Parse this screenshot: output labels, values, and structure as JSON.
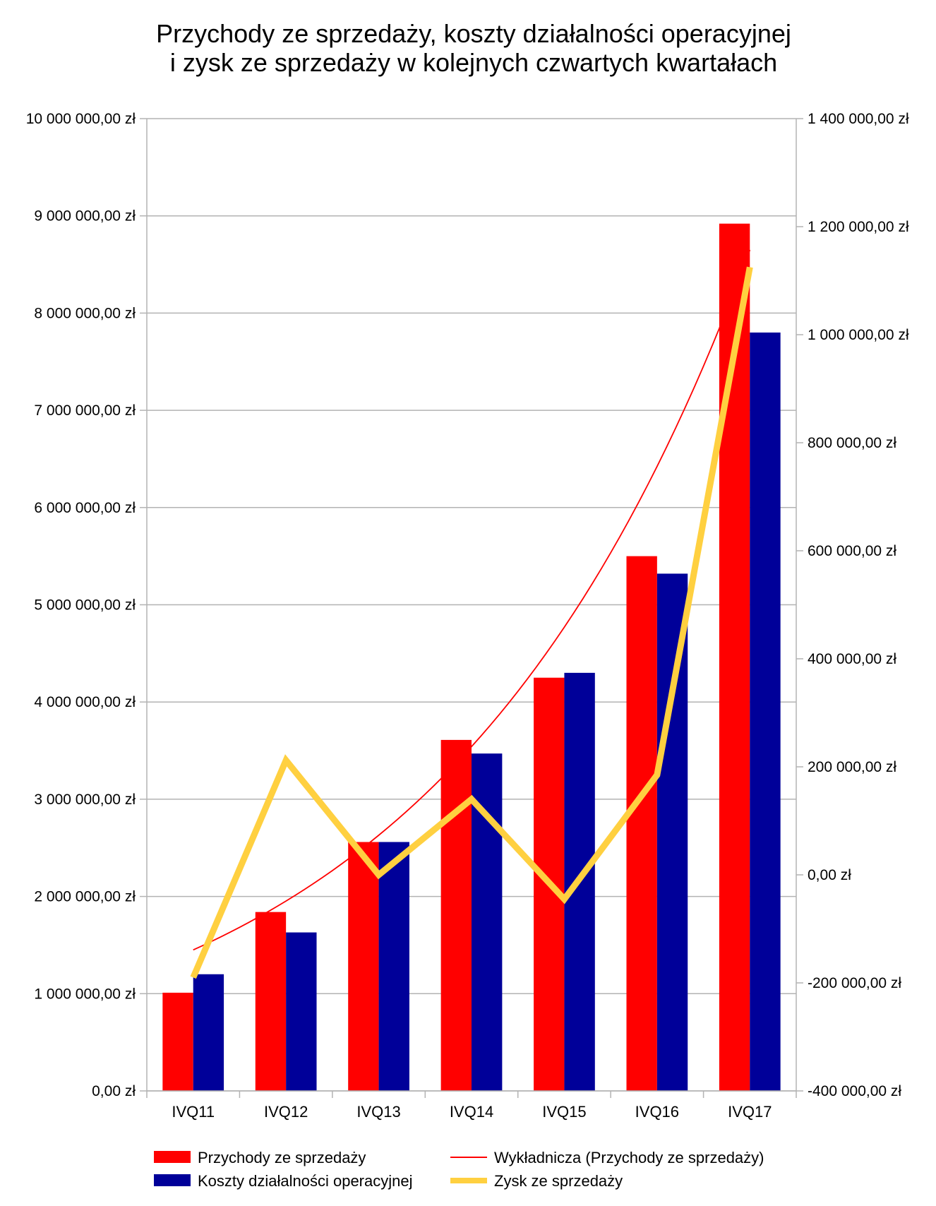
{
  "chart_data": {
    "type": "bar",
    "title": [
      "Przychody ze sprzedaży, koszty działalności operacyjnej",
      "i zysk ze sprzedaży w kolejnych czwartych kwartałach"
    ],
    "categories": [
      "IVQ11",
      "IVQ12",
      "IVQ13",
      "IVQ14",
      "IVQ15",
      "IVQ16",
      "IVQ17"
    ],
    "series": [
      {
        "name": "Przychody ze sprzedaży",
        "axis": "left",
        "kind": "bar",
        "color": "#ff0000",
        "values": [
          1010000,
          1840000,
          2560000,
          3610000,
          4250000,
          5500000,
          8920000
        ]
      },
      {
        "name": "Koszty działalności operacyjnej",
        "axis": "left",
        "kind": "bar",
        "color": "#000099",
        "values": [
          1200000,
          1630000,
          2560000,
          3470000,
          4300000,
          5320000,
          7800000
        ]
      },
      {
        "name": "Zysk ze sprzedaży",
        "axis": "right",
        "kind": "line",
        "color": "#ffd040",
        "values": [
          -190000,
          212000,
          0,
          140000,
          -45000,
          185000,
          1125000
        ]
      }
    ],
    "trendline": {
      "name": "Wykładnicza (Przychody ze sprzedaży)",
      "type": "exponential",
      "of": "Przychody ze sprzedaży",
      "color": "#ff0000",
      "start": 1450000,
      "end": 8650000
    },
    "y_left": {
      "min": 0,
      "max": 10000000,
      "step": 1000000,
      "ticks": [
        "0,00 zł",
        "1 000 000,00 zł",
        "2 000 000,00 zł",
        "3 000 000,00 zł",
        "4 000 000,00 zł",
        "5 000 000,00 zł",
        "6 000 000,00 zł",
        "7 000 000,00 zł",
        "8 000 000,00 zł",
        "9 000 000,00 zł",
        "10 000 000,00 zł"
      ]
    },
    "y_right": {
      "min": -400000,
      "max": 1400000,
      "step": 200000,
      "ticks": [
        "-400 000,00 zł",
        "-200 000,00 zł",
        "0,00 zł",
        "200 000,00 zł",
        "400 000,00 zł",
        "600 000,00 zł",
        "800 000,00 zł",
        "1 000 000,00 zł",
        "1 200 000,00 zł",
        "1 400 000,00 zł"
      ],
      "negative_color": "#ff0000"
    },
    "grid": true,
    "legend_position": "bottom",
    "legend": [
      "Przychody ze sprzedaży",
      "Wykładnicza (Przychody ze sprzedaży)",
      "Koszty działalności operacyjnej",
      "Zysk ze sprzedaży"
    ]
  }
}
